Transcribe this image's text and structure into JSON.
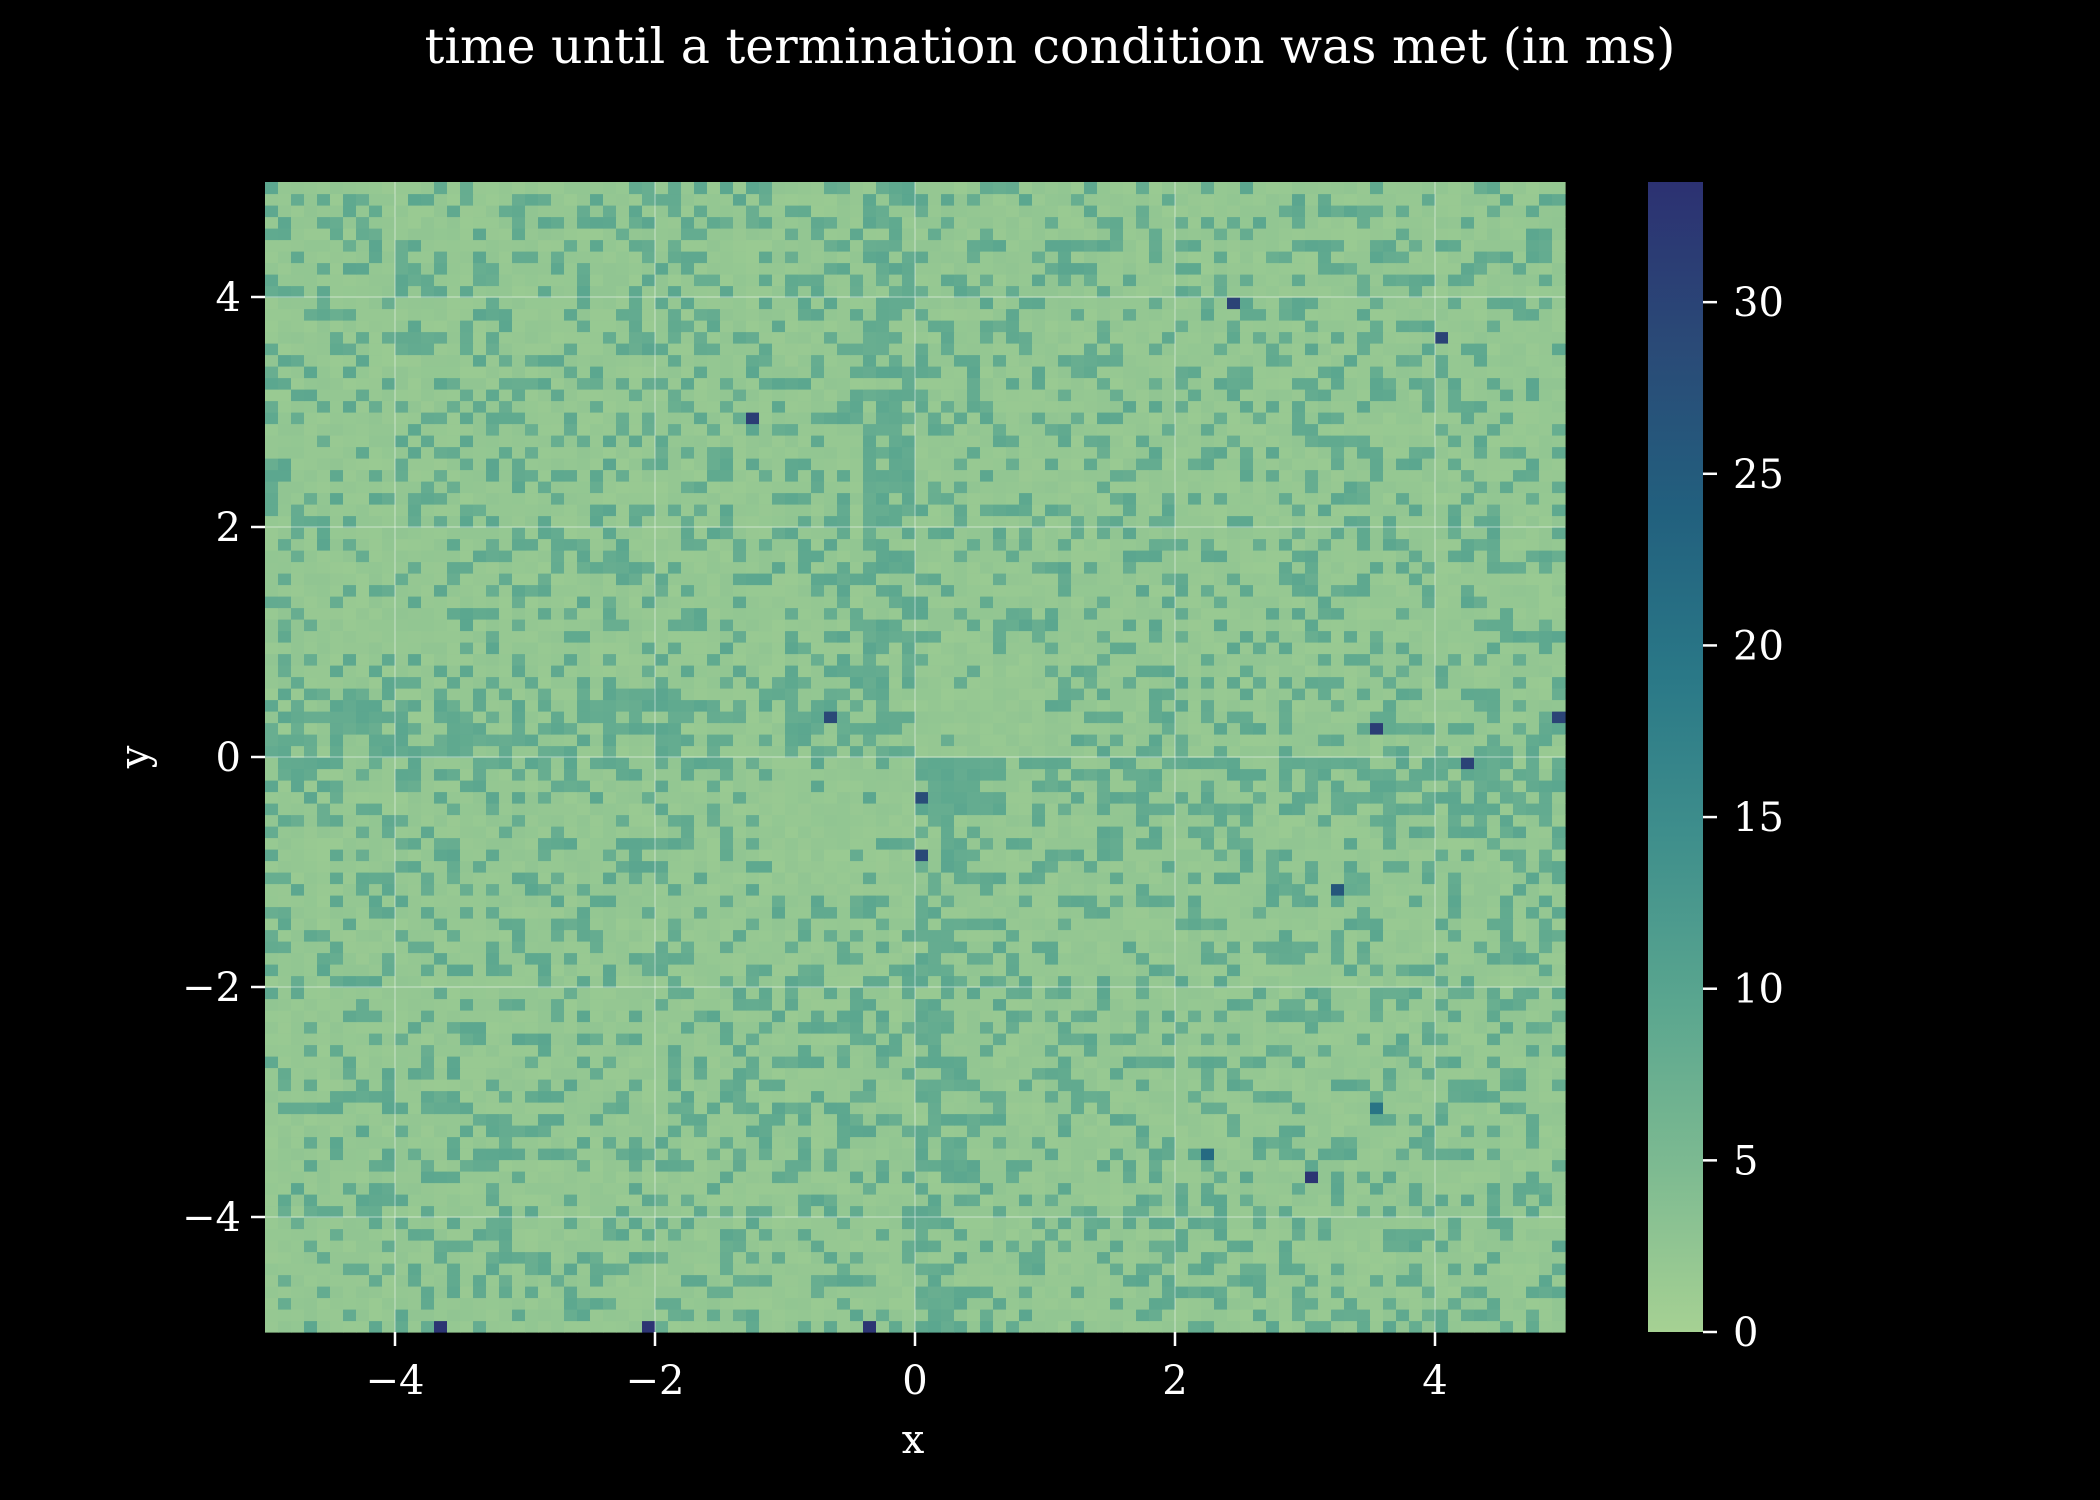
{
  "chart_data": {
    "type": "heatmap",
    "title": "time until a termination condition was met (in ms)",
    "xlabel": "x",
    "ylabel": "y",
    "xlim": [
      -5,
      5
    ],
    "ylim": [
      -5,
      5
    ],
    "grid": true,
    "x_ticks": [
      -4,
      -2,
      0,
      2,
      4
    ],
    "y_ticks": [
      -4,
      -2,
      0,
      2,
      4
    ],
    "x_tick_labels": [
      "−4",
      "−2",
      "0",
      "2",
      "4"
    ],
    "y_tick_labels": [
      "−4",
      "−2",
      "0",
      "2",
      "4"
    ],
    "grid_cells": [
      100,
      100
    ],
    "colorbar": {
      "min": 0,
      "max": 33.5,
      "ticks": [
        0,
        5,
        10,
        15,
        20,
        25,
        30
      ],
      "tick_labels": [
        "0",
        "5",
        "10",
        "15",
        "20",
        "25",
        "30"
      ],
      "colormap": "crest",
      "colors": [
        "#a6d193",
        "#7dba91",
        "#5aa68f",
        "#3f8f8c",
        "#2a7887",
        "#22607e",
        "#2a4a77",
        "#2c3172"
      ]
    },
    "background_values": {
      "low": 1.5,
      "high": 8.5
    },
    "outliers": [
      {
        "x": -1.3,
        "y": 2.95,
        "value": 31
      },
      {
        "x": -0.65,
        "y": 0.35,
        "value": 29
      },
      {
        "x": 0.05,
        "y": -0.35,
        "value": 28
      },
      {
        "x": 0.05,
        "y": -0.85,
        "value": 29
      },
      {
        "x": 2.45,
        "y": 3.95,
        "value": 30
      },
      {
        "x": 4.05,
        "y": 3.65,
        "value": 30
      },
      {
        "x": 3.55,
        "y": 0.25,
        "value": 31
      },
      {
        "x": 4.95,
        "y": 0.35,
        "value": 30
      },
      {
        "x": 4.25,
        "y": -0.05,
        "value": 30
      },
      {
        "x": 3.25,
        "y": -1.15,
        "value": 26
      },
      {
        "x": 3.55,
        "y": -3.05,
        "value": 20
      },
      {
        "x": 2.25,
        "y": -3.45,
        "value": 22
      },
      {
        "x": 3.05,
        "y": -3.65,
        "value": 33
      },
      {
        "x": -3.65,
        "y": -4.95,
        "value": 33
      },
      {
        "x": -2.05,
        "y": -4.95,
        "value": 33
      },
      {
        "x": -0.35,
        "y": -4.95,
        "value": 33
      }
    ]
  }
}
